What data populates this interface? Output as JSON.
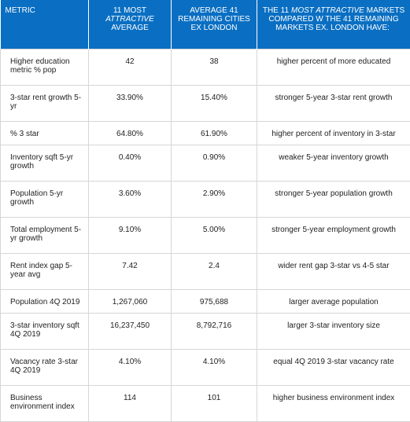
{
  "table": {
    "headers": [
      {
        "parts": [
          "METRIC"
        ]
      },
      {
        "parts": [
          "11 MOST",
          "ATTRACTIVE",
          "AVERAGE"
        ]
      },
      {
        "parts": [
          "AVERAGE 41",
          "REMAINING CITIES",
          "EX LONDON"
        ]
      },
      {
        "parts": [
          "THE 11",
          "MOST ATTRACTIVE",
          "MARKETS COMPARED W THE 41 REMAINING MARKETS EX. LONDON HAVE:"
        ]
      }
    ],
    "rows": [
      [
        "Higher education metric % pop",
        "42",
        "38",
        "higher percent of more educated"
      ],
      [
        "3-star rent growth 5-yr",
        "33.90%",
        "15.40%",
        "stronger 5-year 3-star rent growth"
      ],
      [
        "% 3 star",
        "64.80%",
        "61.90%",
        "higher percent of inventory in 3-star"
      ],
      [
        "Inventory sqft 5-yr growth",
        "0.40%",
        "0.90%",
        "weaker 5-year inventory growth"
      ],
      [
        "Population 5-yr growth",
        "3.60%",
        "2.90%",
        "stronger 5-year population growth"
      ],
      [
        "Total employment 5-yr growth",
        "9.10%",
        "5.00%",
        "stronger 5-year employment growth"
      ],
      [
        "Rent index gap 5-year avg",
        "7.42",
        "2.4",
        "wider rent gap 3-star vs 4-5 star"
      ],
      [
        "Population 4Q 2019",
        "1,267,060",
        "975,688",
        "larger average population"
      ],
      [
        "3-star inventory sqft 4Q 2019",
        "16,237,450",
        "8,792,716",
        "larger 3-star inventory size"
      ],
      [
        "Vacancy rate 3-star 4Q 2019",
        "4.10%",
        "4.10%",
        "equal 4Q 2019 3-star vacancy rate"
      ],
      [
        "Business environment index",
        "114",
        "101",
        "higher business environment index"
      ]
    ]
  }
}
